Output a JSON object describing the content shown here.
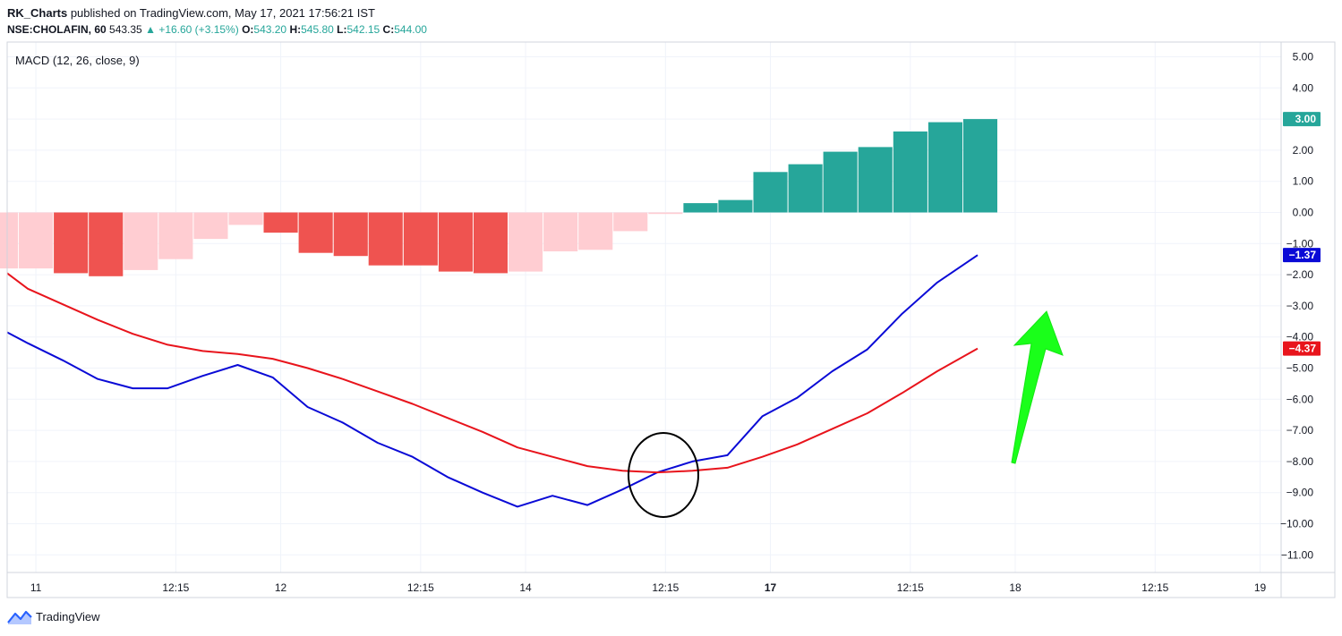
{
  "header": {
    "author": "RK_Charts",
    "published_text": "published on TradingView.com, May 17, 2021 17:56:21 IST",
    "symbol": "NSE:CHOLAFIN, 60",
    "price": "543.35",
    "change_arrow": "▲",
    "change": "+16.60 (+3.15%)",
    "o_label": "O:",
    "o_value": "543.20",
    "h_label": "H:",
    "h_value": "545.80",
    "l_label": "L:",
    "l_value": "542.15",
    "c_label": "C:",
    "c_value": "544.00"
  },
  "indicator_label": "MACD (12, 26, close, 9)",
  "footer": {
    "brand": "TradingView",
    "logo_icon": "tradingview-logo-icon"
  },
  "annotations": {
    "circle": "crossover-circle",
    "arrow": "green-up-arrow"
  },
  "colors": {
    "macd_line": "#0a0ad6",
    "signal_line": "#e8141c",
    "hist_pos_strong": "#26a69a",
    "hist_neg_strong": "#ef5350",
    "hist_neg_weak": "#ffcdd2",
    "arrow": "#1aff1a",
    "grid": "#f0f3fa"
  },
  "chart_data": {
    "type": "line",
    "y_ticks": [
      "5.00",
      "4.00",
      "3.00",
      "2.00",
      "1.00",
      "0.00",
      "−1.00",
      "−2.00",
      "−3.00",
      "−4.00",
      "−5.00",
      "−6.00",
      "−7.00",
      "−8.00",
      "−9.00",
      "−10.00",
      "−11.00"
    ],
    "ylim": [
      -11.5,
      5.5
    ],
    "x_ticks": [
      {
        "label": "11",
        "idx": 1,
        "bold": false
      },
      {
        "label": "12:15",
        "idx": 5,
        "bold": false
      },
      {
        "label": "12",
        "idx": 8,
        "bold": false
      },
      {
        "label": "12:15",
        "idx": 12,
        "bold": false
      },
      {
        "label": "14",
        "idx": 15,
        "bold": false
      },
      {
        "label": "12:15",
        "idx": 19,
        "bold": false
      },
      {
        "label": "17",
        "idx": 22,
        "bold": true
      },
      {
        "label": "12:15",
        "idx": 26,
        "bold": false
      },
      {
        "label": "18",
        "idx": 29,
        "bold": false
      },
      {
        "label": "12:15",
        "idx": 33,
        "bold": false
      },
      {
        "label": "19",
        "idx": 36,
        "bold": false
      }
    ],
    "histogram": [
      {
        "v": -1.8,
        "c": "w"
      },
      {
        "v": -1.8,
        "c": "w"
      },
      {
        "v": -1.95,
        "c": "s"
      },
      {
        "v": -2.05,
        "c": "s"
      },
      {
        "v": -1.85,
        "c": "w"
      },
      {
        "v": -1.5,
        "c": "w"
      },
      {
        "v": -0.85,
        "c": "w"
      },
      {
        "v": -0.4,
        "c": "w"
      },
      {
        "v": -0.65,
        "c": "s"
      },
      {
        "v": -1.3,
        "c": "s"
      },
      {
        "v": -1.4,
        "c": "s"
      },
      {
        "v": -1.7,
        "c": "s"
      },
      {
        "v": -1.7,
        "c": "s"
      },
      {
        "v": -1.9,
        "c": "s"
      },
      {
        "v": -1.95,
        "c": "s"
      },
      {
        "v": -1.9,
        "c": "w"
      },
      {
        "v": -1.25,
        "c": "w"
      },
      {
        "v": -1.2,
        "c": "w"
      },
      {
        "v": -0.6,
        "c": "w"
      },
      {
        "v": -0.05,
        "c": "w"
      },
      {
        "v": 0.3,
        "c": "p"
      },
      {
        "v": 0.4,
        "c": "p"
      },
      {
        "v": 1.3,
        "c": "p"
      },
      {
        "v": 1.55,
        "c": "p"
      },
      {
        "v": 1.95,
        "c": "p"
      },
      {
        "v": 2.1,
        "c": "p"
      },
      {
        "v": 2.6,
        "c": "p"
      },
      {
        "v": 2.9,
        "c": "p"
      },
      {
        "v": 3.0,
        "c": "p"
      }
    ],
    "series": [
      {
        "name": "MACD",
        "values": [
          -3.85,
          -4.2,
          -4.75,
          -5.35,
          -5.65,
          -5.65,
          -5.25,
          -4.9,
          -5.3,
          -6.25,
          -6.75,
          -7.4,
          -7.85,
          -8.5,
          -9.0,
          -9.45,
          -9.1,
          -9.4,
          -8.9,
          -8.35,
          -8.0,
          -7.8,
          -6.55,
          -5.95,
          -5.1,
          -4.4,
          -3.25,
          -2.25,
          -1.37
        ]
      },
      {
        "name": "Signal",
        "values": [
          -1.95,
          -2.45,
          -2.95,
          -3.45,
          -3.9,
          -4.25,
          -4.45,
          -4.55,
          -4.7,
          -5.0,
          -5.35,
          -5.75,
          -6.15,
          -6.6,
          -7.05,
          -7.55,
          -7.85,
          -8.15,
          -8.3,
          -8.35,
          -8.3,
          -8.2,
          -7.85,
          -7.45,
          -6.95,
          -6.45,
          -5.8,
          -5.1,
          -4.37
        ]
      }
    ],
    "last_values": [
      {
        "label": "3.00",
        "value": 3.0,
        "color": "#26a69a"
      },
      {
        "label": "−1.37",
        "value": -1.37,
        "color": "#0a0ad6"
      },
      {
        "label": "−4.37",
        "value": -4.37,
        "color": "#e8141c"
      }
    ]
  }
}
